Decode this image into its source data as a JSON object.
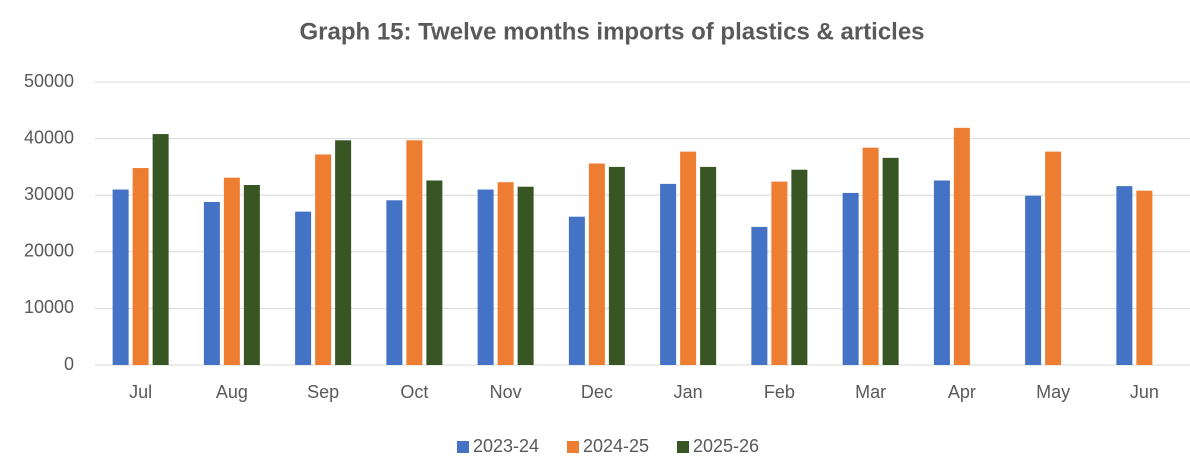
{
  "chart_data": {
    "type": "bar",
    "title": "Graph 15: Twelve months imports of plastics & articles",
    "categories": [
      "Jul",
      "Aug",
      "Sep",
      "Oct",
      "Nov",
      "Dec",
      "Jan",
      "Feb",
      "Mar",
      "Apr",
      "May",
      "Jun"
    ],
    "series": [
      {
        "name": "2023-24",
        "color": "#4472c4",
        "values": [
          31000,
          28800,
          27100,
          29100,
          31000,
          26200,
          32000,
          24400,
          30400,
          32600,
          29900,
          31600
        ]
      },
      {
        "name": "2024-25",
        "color": "#ed7d31",
        "values": [
          34800,
          33100,
          37200,
          39700,
          32300,
          35600,
          37700,
          32400,
          38400,
          41900,
          37700,
          30800
        ]
      },
      {
        "name": "2025-26",
        "color": "#375623",
        "values": [
          40800,
          31800,
          39700,
          32600,
          31500,
          35000,
          35000,
          34500,
          36600,
          null,
          null,
          null
        ]
      }
    ],
    "ylim": [
      0,
      50000
    ],
    "yticks": [
      0,
      10000,
      20000,
      30000,
      40000,
      50000
    ],
    "grid": true,
    "legend": "bottom"
  }
}
